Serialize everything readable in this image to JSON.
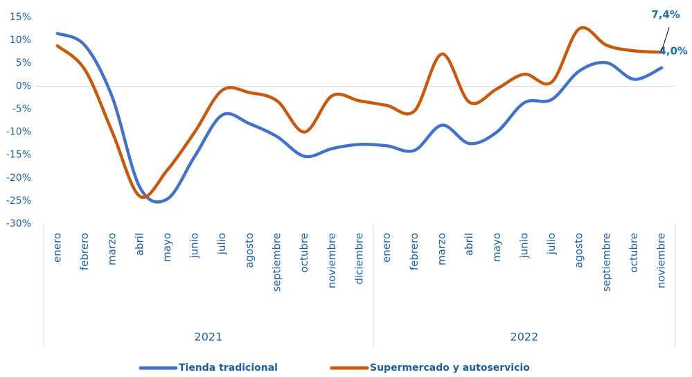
{
  "chart_data": {
    "type": "line",
    "category_groups": [
      {
        "label": "2021",
        "categories": [
          "enero",
          "febrero",
          "marzo",
          "abril",
          "mayo",
          "junio",
          "julio",
          "agosto",
          "septiembre",
          "octubre",
          "noviembre",
          "diciembre"
        ]
      },
      {
        "label": "2022",
        "categories": [
          "enero",
          "febrero",
          "marzo",
          "abril",
          "mayo",
          "junio",
          "julio",
          "agosto",
          "septiembre",
          "octubre",
          "noviembre"
        ]
      }
    ],
    "series": [
      {
        "name": "Tienda tradicional",
        "color": "#4472c4",
        "values": [
          11.5,
          8.9,
          -2.4,
          -22,
          -24.6,
          -15.3,
          -6.3,
          -8.2,
          -11,
          -15.3,
          -13.6,
          -12.7,
          -13,
          -14,
          -8.5,
          -12.5,
          -10,
          -3.6,
          -2.9,
          3.3,
          5.1,
          1.5,
          4.0
        ],
        "value_labels": [
          null,
          null,
          null,
          null,
          null,
          null,
          null,
          null,
          null,
          null,
          null,
          null,
          null,
          null,
          null,
          null,
          null,
          null,
          null,
          null,
          null,
          null,
          "4,0%"
        ]
      },
      {
        "name": "Supermercado y autoservicio",
        "color": "#c55a11",
        "values": [
          8.8,
          3.6,
          -10,
          -24,
          -18.3,
          -10,
          -0.9,
          -1.4,
          -3.2,
          -10,
          -2.1,
          -3.2,
          -4.2,
          -5.4,
          7,
          -3.5,
          -0.6,
          2.6,
          0.9,
          12.5,
          8.9,
          7.7,
          7.4
        ],
        "value_labels": [
          null,
          null,
          null,
          null,
          null,
          null,
          null,
          null,
          null,
          null,
          null,
          null,
          null,
          null,
          null,
          null,
          null,
          null,
          null,
          null,
          null,
          null,
          "7,4%"
        ]
      }
    ],
    "ylim": [
      -30,
      15
    ],
    "yticks": [
      {
        "value": -30,
        "label": "-30%"
      },
      {
        "value": -25,
        "label": "-25%"
      },
      {
        "value": -20,
        "label": "-20%"
      },
      {
        "value": -15,
        "label": "-15%"
      },
      {
        "value": -10,
        "label": "-10%"
      },
      {
        "value": -5,
        "label": "-5%"
      },
      {
        "value": 0,
        "label": "0%"
      },
      {
        "value": 5,
        "label": "5%"
      },
      {
        "value": 10,
        "label": "10%"
      },
      {
        "value": 15,
        "label": "15%"
      }
    ],
    "grid": false,
    "legend": "bottom"
  }
}
